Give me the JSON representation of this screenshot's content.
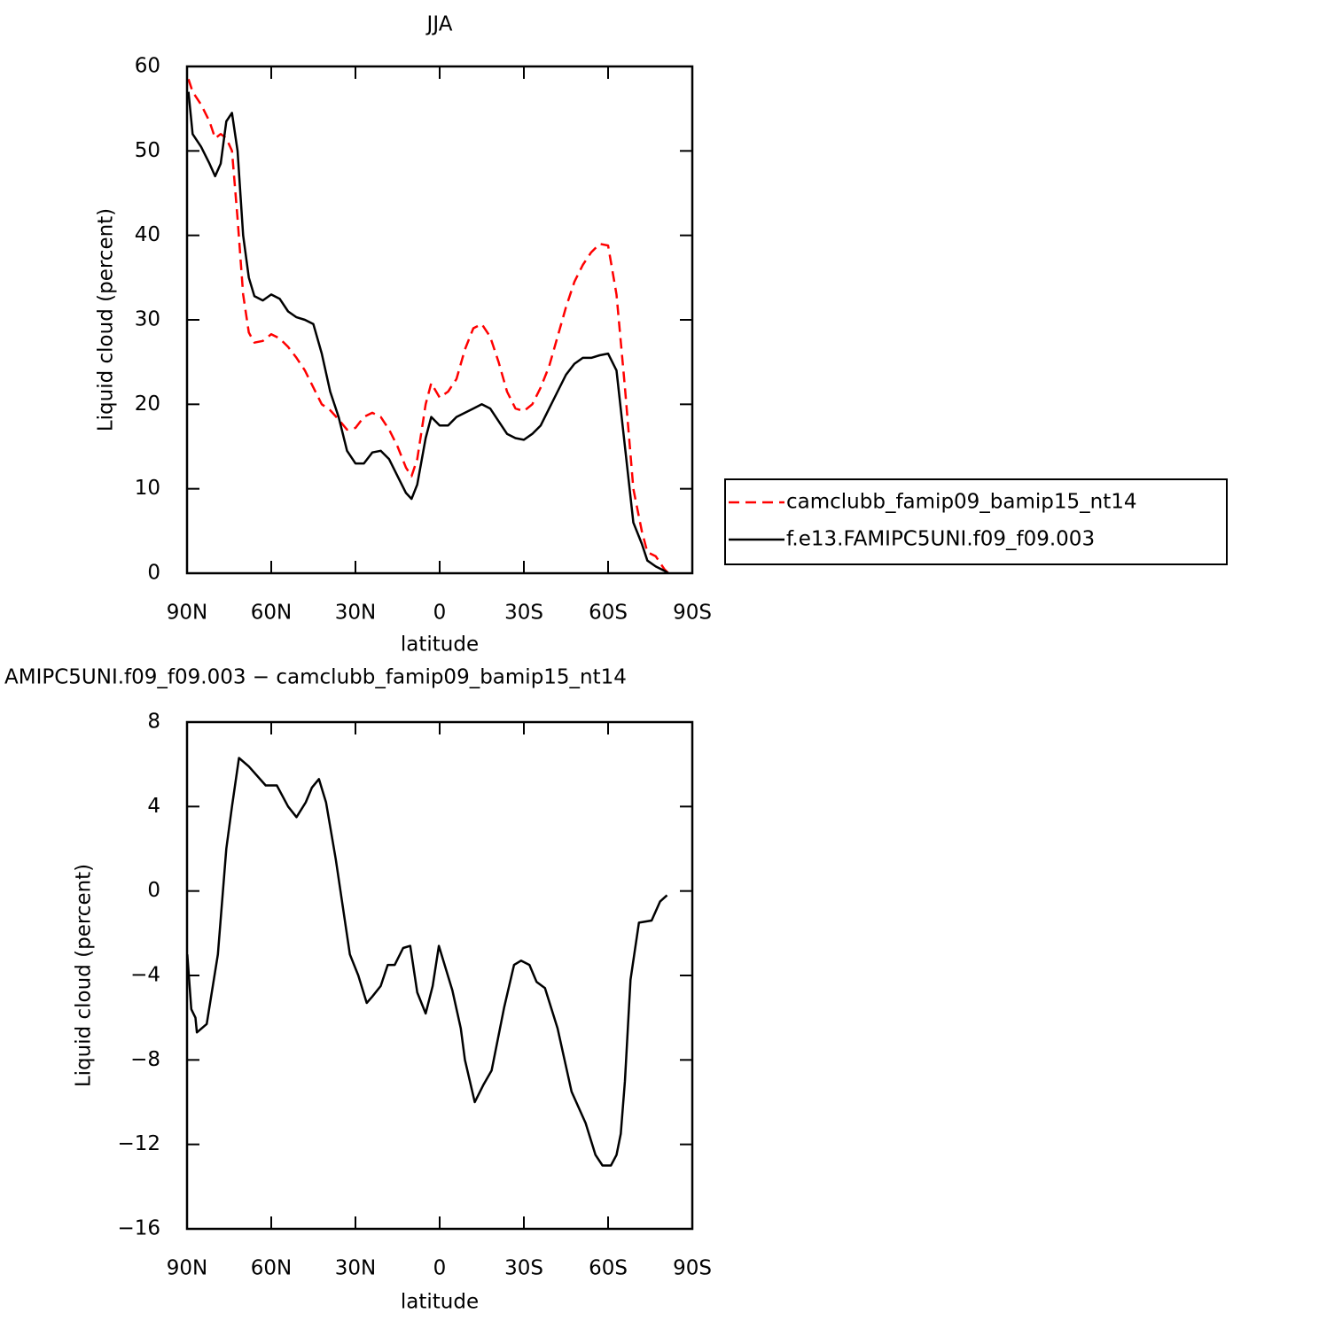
{
  "chart_data": [
    {
      "type": "line",
      "title": "JJA",
      "y_label": "Liquid cloud (percent)",
      "x_label": "latitude",
      "x": [
        89.5,
        88,
        85,
        82,
        80,
        78,
        76,
        74,
        72,
        70,
        68,
        66,
        63,
        60,
        57,
        54,
        51,
        48,
        45,
        42,
        39,
        36,
        33,
        30,
        27,
        24,
        21,
        18,
        15,
        12,
        10,
        8,
        5,
        3,
        0,
        -3,
        -6,
        -9,
        -12,
        -15,
        -18,
        -21,
        -24,
        -27,
        -30,
        -33,
        -36,
        -39,
        -42,
        -45,
        -48,
        -51,
        -54,
        -57,
        -60,
        -63,
        -66,
        -69,
        -72,
        -74,
        -77,
        -80,
        -81.5
      ],
      "series": [
        {
          "name": "camclubb_famip09_bamip15_nt14",
          "color": "#ff0000",
          "dashed": true,
          "values": [
            58.5,
            57,
            55.5,
            53.5,
            51.5,
            52,
            51.5,
            50,
            42,
            33,
            28.5,
            27.3,
            27.5,
            28.3,
            27.8,
            26.8,
            25.5,
            24,
            22,
            20,
            19.3,
            18.2,
            17,
            17.2,
            18.5,
            19,
            18.5,
            17,
            15,
            12.5,
            11.5,
            13.5,
            20,
            22.5,
            20.8,
            21.5,
            23,
            26.5,
            29,
            29.5,
            28,
            25,
            21.5,
            19.5,
            19.2,
            20,
            22,
            24.5,
            28,
            31.5,
            34.5,
            36.5,
            38,
            39,
            38.8,
            33,
            22,
            10,
            5,
            2.5,
            2,
            0.5,
            0
          ]
        },
        {
          "name": "f.e13.FAMIPC5UNI.f09_f09.003",
          "color": "#000000",
          "dashed": false,
          "values": [
            57,
            52,
            50.5,
            48.5,
            47,
            48.5,
            53.5,
            54.5,
            50,
            40,
            35,
            32.8,
            32.3,
            33,
            32.5,
            31,
            30.3,
            30,
            29.5,
            26,
            21.5,
            18.5,
            14.5,
            13,
            13,
            14.3,
            14.5,
            13.5,
            11.5,
            9.5,
            8.8,
            10.5,
            16,
            18.5,
            17.5,
            17.5,
            18.5,
            19,
            19.5,
            20,
            19.5,
            18,
            16.5,
            16,
            15.8,
            16.5,
            17.5,
            19.5,
            21.5,
            23.5,
            24.8,
            25.5,
            25.5,
            25.8,
            26,
            24,
            15,
            6,
            3.5,
            1.5,
            0.8,
            0.3,
            0
          ]
        }
      ],
      "xlim": [
        90,
        -90
      ],
      "xticks": [
        {
          "value": 90,
          "label": "90N"
        },
        {
          "value": 60,
          "label": "60N"
        },
        {
          "value": 30,
          "label": "30N"
        },
        0,
        {
          "value": -30,
          "label": "30S"
        },
        {
          "value": -60,
          "label": "60S"
        },
        {
          "value": -90,
          "label": "90S"
        }
      ],
      "ylim": [
        0,
        60
      ],
      "yticks": [
        0,
        10,
        20,
        30,
        40,
        50,
        60
      ],
      "legend": "right"
    },
    {
      "type": "line",
      "title": "AMIPC5UNI.f09_f09.003 − camclubb_famip09_bamip15_nt14",
      "y_label": "Liquid cloud (percent)",
      "x_label": "latitude",
      "x": [
        89.9,
        88.5,
        87,
        86.5,
        83,
        79,
        76,
        74,
        71.5,
        68,
        62,
        58,
        54,
        51,
        47.7,
        45.5,
        43,
        40.5,
        37,
        32,
        29,
        26,
        24,
        21,
        18.5,
        16,
        13,
        10.5,
        8,
        5,
        2.5,
        0.3,
        -4.5,
        -7.5,
        -9,
        -12.5,
        -15.5,
        -18.5,
        -23,
        -26.5,
        -29,
        -32,
        -34.5,
        -37.5,
        -42,
        -47,
        -52,
        -55.5,
        -58,
        -61,
        -63,
        -64.5,
        -66,
        -68,
        -71,
        -75.5,
        -78.5,
        -81
      ],
      "series": [
        {
          "color": "#000000",
          "dashed": false,
          "values": [
            -3,
            -5.6,
            -6,
            -6.7,
            -6.3,
            -3,
            2,
            4,
            6.3,
            5.9,
            5,
            5,
            4,
            3.5,
            4.2,
            4.9,
            5.3,
            4.2,
            1.5,
            -3,
            -4,
            -5.3,
            -5,
            -4.5,
            -3.5,
            -3.5,
            -2.7,
            -2.6,
            -4.8,
            -5.8,
            -4.5,
            -2.6,
            -4.7,
            -6.5,
            -8,
            -10,
            -9.2,
            -8.5,
            -5.5,
            -3.5,
            -3.3,
            -3.5,
            -4.3,
            -4.6,
            -6.5,
            -9.5,
            -11,
            -12.5,
            -13,
            -13,
            -12.5,
            -11.5,
            -9,
            -4.2,
            -1.5,
            -1.4,
            -0.5,
            -0.2
          ]
        }
      ],
      "xlim": [
        90,
        -90
      ],
      "xticks": [
        {
          "value": 90,
          "label": "90N"
        },
        {
          "value": 60,
          "label": "60N"
        },
        {
          "value": 30,
          "label": "30N"
        },
        0,
        {
          "value": -30,
          "label": "30S"
        },
        {
          "value": -60,
          "label": "60S"
        },
        {
          "value": -90,
          "label": "90S"
        }
      ],
      "ylim": [
        -16,
        8
      ],
      "yticks": [
        {
          "value": -16,
          "label": "−16"
        },
        {
          "value": -12,
          "label": "−12"
        },
        {
          "value": -8,
          "label": "−8"
        },
        {
          "value": -4,
          "label": "−4"
        },
        0,
        4,
        8
      ]
    }
  ]
}
